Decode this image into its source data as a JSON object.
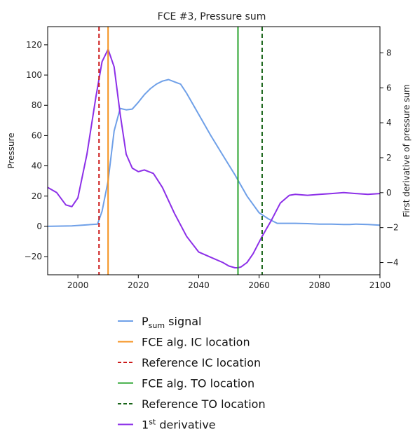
{
  "chart_data": {
    "type": "line",
    "title": "FCE #3, Pressure sum",
    "xlabel": "",
    "ylabel": "Pressure",
    "y2label": "First derivative of pressure sum",
    "xlim": [
      1990,
      2100
    ],
    "ylim": [
      -32,
      132
    ],
    "y2lim": [
      -4.7,
      9.5
    ],
    "xticks": [
      2000,
      2020,
      2040,
      2060,
      2080,
      2100
    ],
    "yticks": [
      -20,
      0,
      20,
      40,
      60,
      80,
      100,
      120
    ],
    "y2ticks": [
      -4,
      -2,
      0,
      2,
      4,
      6,
      8
    ],
    "grid": false,
    "legend_placement": "below plot",
    "series": [
      {
        "name": "P_sum signal",
        "legend_main": "P",
        "legend_sub": "sum",
        "legend_rest": " signal",
        "axis": "left",
        "color": "#6fa0e8",
        "x": [
          1990,
          1998,
          2006.5,
          2008,
          2010,
          2012,
          2014,
          2016,
          2018,
          2020,
          2022,
          2024,
          2026,
          2028,
          2030,
          2032,
          2034,
          2036,
          2040,
          2044,
          2048,
          2052,
          2056,
          2060,
          2063,
          2066,
          2070,
          2072,
          2076,
          2080,
          2084,
          2088,
          2090,
          2092,
          2096,
          2100
        ],
        "y": [
          0,
          0.3,
          1.5,
          10,
          30,
          63,
          78,
          77,
          77.5,
          82,
          87,
          91,
          94,
          96,
          97,
          95.5,
          94,
          88,
          74,
          60,
          47,
          34,
          20,
          9,
          5,
          2,
          2,
          2,
          1.8,
          1.5,
          1.5,
          1.2,
          1.2,
          1.5,
          1.2,
          0.8
        ]
      },
      {
        "name": "1st derivative",
        "legend_main": "1",
        "legend_sup": "st",
        "legend_rest": " derivative",
        "axis": "right",
        "color": "#8c2fe8",
        "x": [
          1990,
          1993,
          1996,
          1998,
          2000,
          2003,
          2006,
          2008,
          2010,
          2012,
          2014,
          2016,
          2018,
          2020,
          2022,
          2025,
          2028,
          2032,
          2036,
          2040,
          2044,
          2048,
          2050,
          2052,
          2053,
          2054,
          2056,
          2058,
          2061,
          2064,
          2067,
          2070,
          2072,
          2076,
          2080,
          2084,
          2088,
          2092,
          2096,
          2100
        ],
        "y": [
          0.3,
          0,
          -0.7,
          -0.8,
          -0.3,
          2.2,
          5.5,
          7.5,
          8.2,
          7.2,
          4.5,
          2.2,
          1.4,
          1.2,
          1.3,
          1.1,
          0.3,
          -1.2,
          -2.5,
          -3.4,
          -3.7,
          -4.0,
          -4.2,
          -4.3,
          -4.3,
          -4.25,
          -4.0,
          -3.5,
          -2.5,
          -1.6,
          -0.6,
          -0.15,
          -0.1,
          -0.15,
          -0.1,
          -0.05,
          0,
          -0.05,
          -0.1,
          -0.05
        ]
      }
    ],
    "vlines": [
      {
        "name": "FCE alg. IC location",
        "x": 2010,
        "color": "#f5921e",
        "dash": false
      },
      {
        "name": "Reference IC location",
        "x": 2007,
        "color": "#cc1a1a",
        "dash": true
      },
      {
        "name": "FCE alg. TO location",
        "x": 2053,
        "color": "#27a32c",
        "dash": false
      },
      {
        "name": "Reference TO location",
        "x": 2061,
        "color": "#176317",
        "dash": true
      }
    ],
    "legend": [
      {
        "label": "P_sum signal",
        "main": "P",
        "sub": "sum",
        "rest": " signal",
        "color": "#6fa0e8",
        "dash": false
      },
      {
        "label": "FCE alg. IC location",
        "main": "FCE alg. IC location",
        "color": "#f5921e",
        "dash": false
      },
      {
        "label": "Reference IC location",
        "main": "Reference IC location",
        "color": "#cc1a1a",
        "dash": true
      },
      {
        "label": "FCE alg. TO location",
        "main": "FCE alg. TO location",
        "color": "#27a32c",
        "dash": false
      },
      {
        "label": "Reference TO location",
        "main": "Reference TO location",
        "color": "#176317",
        "dash": true
      },
      {
        "label": "1st derivative",
        "main": "1",
        "sup": "st",
        "rest": " derivative",
        "color": "#8c2fe8",
        "dash": false
      }
    ]
  }
}
